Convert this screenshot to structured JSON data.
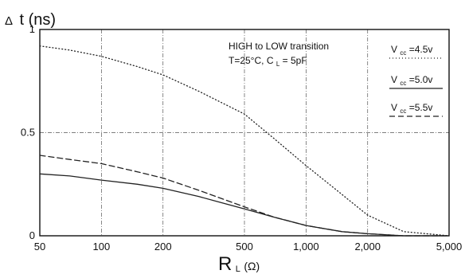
{
  "chart_data": {
    "type": "line",
    "x_scale": "log",
    "xlim": [
      50,
      5000
    ],
    "ylim": [
      0,
      1
    ],
    "ylabel": {
      "symbol": "Δ",
      "text": "t (ns)"
    },
    "xlabel": {
      "main": "R",
      "sub": "L",
      "unit": "(Ω)"
    },
    "x_ticks": [
      50,
      100,
      200,
      500,
      1000,
      2000,
      5000
    ],
    "x_tick_labels": [
      "50",
      "100",
      "200",
      "500",
      "1,000",
      "2,000",
      "5,000"
    ],
    "y_ticks": [
      0,
      0.5,
      1
    ],
    "y_tick_labels": [
      "0",
      "0.5",
      "1"
    ],
    "grid": true,
    "annotation": {
      "line1": "HIGH to LOW transition",
      "line2_pre": "T=25°C, C",
      "line2_sub": "L",
      "line2_post": "= 5pF"
    },
    "series": [
      {
        "name": "V_cc=4.5v",
        "legend_main": "V",
        "legend_sub": "cc",
        "legend_rest": "=4.5v",
        "style": "dotted",
        "x": [
          50,
          70,
          100,
          150,
          200,
          300,
          500,
          700,
          1000,
          1500,
          2000,
          3000,
          5000
        ],
        "y": [
          0.92,
          0.9,
          0.87,
          0.82,
          0.78,
          0.7,
          0.59,
          0.47,
          0.34,
          0.2,
          0.1,
          0.02,
          0.0
        ]
      },
      {
        "name": "V_cc=5.0v",
        "legend_main": "V",
        "legend_sub": "cc",
        "legend_rest": "=5.0v",
        "style": "solid",
        "x": [
          50,
          70,
          100,
          150,
          200,
          300,
          500,
          700,
          1000,
          1500,
          2000,
          3000,
          5000
        ],
        "y": [
          0.3,
          0.29,
          0.27,
          0.25,
          0.23,
          0.19,
          0.13,
          0.09,
          0.05,
          0.02,
          0.01,
          0.0,
          0.0
        ]
      },
      {
        "name": "V_cc=5.5v",
        "legend_main": "V",
        "legend_sub": "cc",
        "legend_rest": "=5.5v",
        "style": "dashed",
        "x": [
          50,
          70,
          100,
          150,
          200,
          300,
          500,
          700,
          1000,
          1500,
          2000,
          3000,
          5000
        ],
        "y": [
          0.39,
          0.37,
          0.35,
          0.31,
          0.28,
          0.22,
          0.14,
          0.09,
          0.05,
          0.02,
          0.01,
          0.0,
          0.0
        ]
      }
    ]
  }
}
